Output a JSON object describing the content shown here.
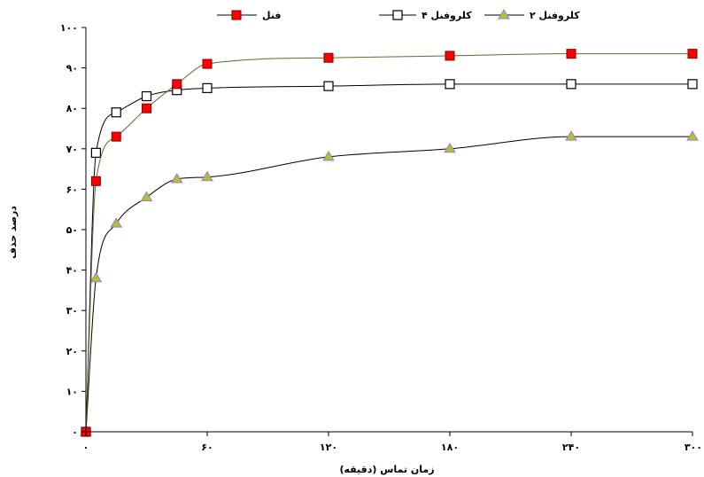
{
  "chart_data": {
    "type": "line",
    "title": "",
    "xlabel": "زمان تماس (دقیقه)",
    "ylabel": "درصد حذف",
    "xlim": [
      0,
      300
    ],
    "ylim": [
      0,
      100
    ],
    "x_ticks": [
      0,
      60,
      120,
      180,
      240,
      300
    ],
    "x_tick_labels": [
      "۰",
      "۶۰",
      "۱۲۰",
      "۱۸۰",
      "۲۴۰",
      "۳۰۰"
    ],
    "y_ticks": [
      0,
      10,
      20,
      30,
      40,
      50,
      60,
      70,
      80,
      90,
      100
    ],
    "y_tick_labels": [
      "۰",
      "۱۰",
      "۲۰",
      "۳۰",
      "۴۰",
      "۵۰",
      "۶۰",
      "۷۰",
      "۸۰",
      "۹۰",
      "۱۰۰"
    ],
    "grid": false,
    "legend_position": "top",
    "series": [
      {
        "name": "فنل",
        "color": "#ff0000",
        "marker": "square-filled",
        "x": [
          0,
          5,
          15,
          30,
          45,
          60,
          120,
          180,
          240,
          300
        ],
        "y": [
          0,
          62,
          73,
          80,
          86,
          91,
          92.5,
          93,
          93.5,
          93.5
        ]
      },
      {
        "name": "کلروفنل ۴",
        "color": "#000000",
        "marker": "square-open",
        "x": [
          0,
          5,
          15,
          30,
          45,
          60,
          120,
          180,
          240,
          300
        ],
        "y": [
          0,
          69,
          79,
          83,
          84.5,
          85,
          85.5,
          86,
          86,
          86
        ]
      },
      {
        "name": "کلروفنل ۲",
        "color": "#9acd32",
        "marker": "triangle",
        "x": [
          0,
          5,
          15,
          30,
          45,
          60,
          120,
          180,
          240,
          300
        ],
        "y": [
          0,
          38,
          51.5,
          58,
          62.5,
          63,
          68,
          70,
          73,
          73
        ]
      }
    ]
  }
}
